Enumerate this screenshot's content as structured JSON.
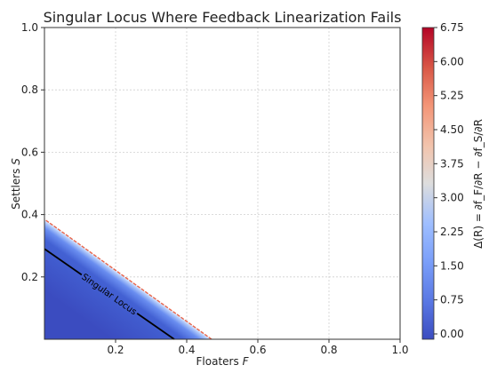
{
  "chart_data": {
    "type": "heatmap",
    "title": "Singular Locus Where Feedback Linearization Fails",
    "xlabel_main": "Floaters ",
    "xlabel_var": "F",
    "ylabel_main": "Settlers ",
    "ylabel_var": "S",
    "xlim": [
      0.0,
      1.0
    ],
    "ylim": [
      0.0,
      1.0
    ],
    "x_ticks": [
      0.2,
      0.4,
      0.6,
      0.8,
      1.0
    ],
    "x_tick_labels": [
      "0.2",
      "0.4",
      "0.6",
      "0.8",
      "1.0"
    ],
    "y_ticks": [
      0.2,
      0.4,
      0.6,
      0.8,
      1.0
    ],
    "y_tick_labels": [
      "0.2",
      "0.4",
      "0.6",
      "0.8",
      "1.0"
    ],
    "grid": true,
    "colormap": "coolwarm",
    "region": {
      "description_boundary": "values shown where F/0.47 + S/0.385 < 1",
      "x_intercept": 0.47,
      "y_intercept": 0.385,
      "value_low": 0.0,
      "value_high": 6.75
    },
    "singular_locus": {
      "label": "Singular Locus",
      "points": [
        [
          0.0,
          0.29
        ],
        [
          0.365,
          0.0
        ]
      ],
      "color": "#000000"
    },
    "colorbar": {
      "label": "Δ(R) = ∂f_F/∂R − ∂f_S/∂R",
      "min": 0.0,
      "max": 6.75,
      "ticks": [
        0.0,
        0.75,
        1.5,
        2.25,
        3.0,
        3.75,
        4.5,
        5.25,
        6.0,
        6.75
      ],
      "tick_labels": [
        "0.00",
        "0.75",
        "1.50",
        "2.25",
        "3.00",
        "3.75",
        "4.50",
        "5.25",
        "6.00",
        "6.75"
      ]
    },
    "colors": {
      "low": "#3b4cc0",
      "mid": "#dddddd",
      "high": "#b40426",
      "edge": "#e8654a"
    }
  }
}
